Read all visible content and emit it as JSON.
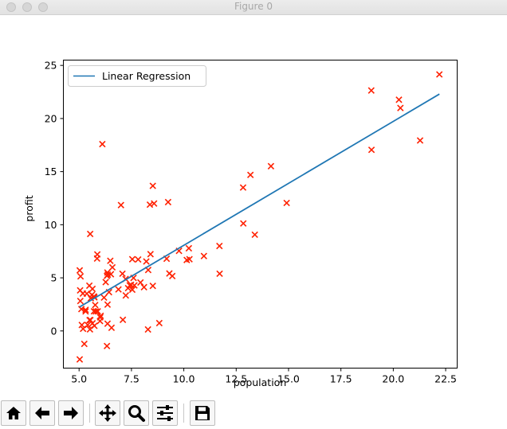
{
  "window": {
    "title": "Figure 0"
  },
  "toolbar": {
    "buttons": [
      {
        "icon": "home-icon"
      },
      {
        "icon": "back-arrow-icon"
      },
      {
        "icon": "forward-arrow-icon"
      },
      {
        "icon": "pan-move-icon"
      },
      {
        "icon": "zoom-magnifier-icon"
      },
      {
        "icon": "subplots-sliders-icon"
      },
      {
        "icon": "save-floppy-icon"
      }
    ]
  },
  "chart_data": {
    "type": "scatter",
    "title": "",
    "xlabel": "population",
    "ylabel": "profit",
    "xlim": [
      4.25,
      23.05
    ],
    "ylim": [
      -3.5,
      25.5
    ],
    "xticks": [
      "5.0",
      "7.5",
      "10.0",
      "12.5",
      "15.0",
      "17.5",
      "20.0",
      "22.5"
    ],
    "yticks": [
      "0",
      "5",
      "10",
      "15",
      "20",
      "25"
    ],
    "grid": false,
    "legend": {
      "position": "upper-left",
      "entries": [
        "Linear Regression"
      ]
    },
    "colors": {
      "scatter": "#ff2000",
      "line": "#1f77b4"
    },
    "series": [
      {
        "kind": "line",
        "name": "Linear Regression",
        "x": [
          5.0269,
          22.203
        ],
        "y": [
          2.26,
          22.3
        ]
      },
      {
        "kind": "scatter",
        "marker": "x",
        "x": [
          6.11,
          5.53,
          8.52,
          7.0,
          5.86,
          8.38,
          7.48,
          8.58,
          6.49,
          5.05,
          5.71,
          14.16,
          5.73,
          8.41,
          5.64,
          5.37,
          6.37,
          5.13,
          6.43,
          7.07,
          6.19,
          20.27,
          5.49,
          6.33,
          5.56,
          18.95,
          12.83,
          10.96,
          13.18,
          22.2,
          5.25,
          6.59,
          9.25,
          5.89,
          8.21,
          7.93,
          8.1,
          5.61,
          12.84,
          6.35,
          5.41,
          6.88,
          11.71,
          5.77,
          7.82,
          7.09,
          5.07,
          5.8,
          11.7,
          5.54,
          7.54,
          5.31,
          7.42,
          7.6,
          6.03,
          6.33,
          6.36,
          6.27,
          5.64,
          9.31,
          9.45,
          8.83,
          5.18,
          21.28,
          14.91,
          18.96,
          7.22,
          8.3,
          10.24,
          5.5,
          20.34,
          10.14,
          7.34,
          6.01,
          7.23,
          5.03,
          6.55,
          7.54,
          5.03,
          10.27,
          5.11,
          5.73,
          5.19,
          6.36,
          9.77,
          6.52,
          8.52,
          9.18,
          6.0,
          5.52,
          5.06,
          5.71,
          7.64,
          5.87,
          5.31,
          8.29,
          13.39
        ],
        "y": [
          17.59,
          9.13,
          13.66,
          11.85,
          6.82,
          11.89,
          4.35,
          12.0,
          6.6,
          3.82,
          3.25,
          15.51,
          3.16,
          7.23,
          0.72,
          3.51,
          5.3,
          0.56,
          3.65,
          5.39,
          3.14,
          21.77,
          4.26,
          5.19,
          3.08,
          22.64,
          13.5,
          7.05,
          14.69,
          24.15,
          -1.22,
          5.99,
          12.13,
          1.85,
          6.54,
          4.56,
          4.12,
          3.39,
          10.12,
          5.5,
          0.56,
          3.91,
          5.39,
          2.44,
          6.73,
          1.05,
          5.14,
          1.84,
          8.0,
          1.02,
          6.75,
          1.84,
          4.29,
          4.99,
          1.42,
          -1.42,
          2.48,
          4.6,
          3.96,
          5.41,
          5.17,
          0.74,
          3.52,
          17.93,
          12.05,
          17.05,
          4.89,
          5.74,
          7.78,
          1.02,
          20.99,
          6.68,
          4.03,
          1.28,
          3.34,
          -2.68,
          0.3,
          3.88,
          5.7,
          6.75,
          2.06,
          0.48,
          0.2,
          0.68,
          7.54,
          5.34,
          4.24,
          6.8,
          0.93,
          0.15,
          2.82,
          1.85,
          4.29,
          7.2,
          1.99,
          0.14,
          9.06
        ]
      }
    ]
  }
}
